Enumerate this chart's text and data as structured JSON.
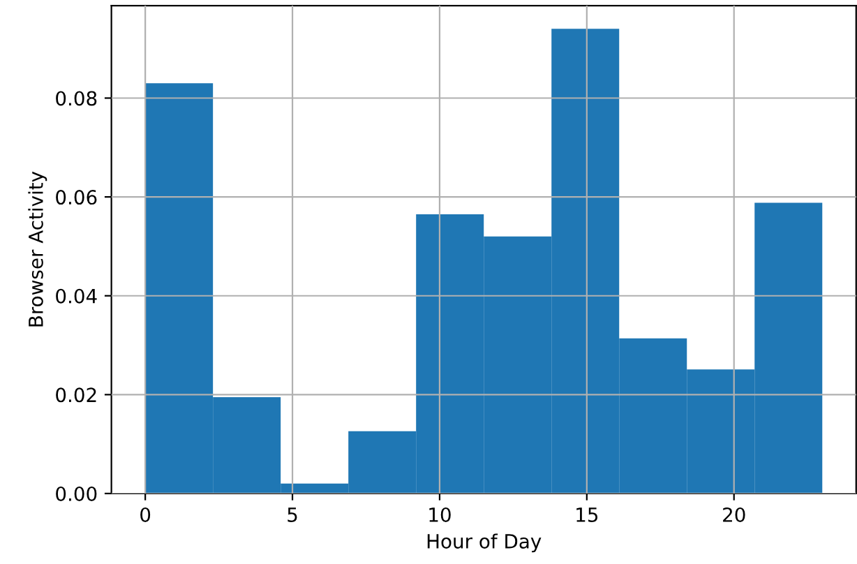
{
  "chart_data": {
    "type": "histogram",
    "xlabel": "Hour of Day",
    "ylabel": "Browser Activity",
    "bins": [
      0,
      2.3,
      4.6,
      6.9,
      9.2,
      11.5,
      13.8,
      16.1,
      18.4,
      20.7,
      23
    ],
    "values": [
      0.083,
      0.0195,
      0.002,
      0.0126,
      0.0565,
      0.052,
      0.094,
      0.0314,
      0.0251,
      0.0588
    ],
    "color": "#1f77b4",
    "xlim": [
      -1.15,
      24.15
    ],
    "xticks": [
      0,
      5,
      10,
      15,
      20
    ],
    "ylim": [
      0,
      0.0987
    ],
    "yticks": [
      {
        "value": 0,
        "label": "0.00"
      },
      {
        "value": 0.02,
        "label": "0.02"
      },
      {
        "value": 0.04,
        "label": "0.04"
      },
      {
        "value": 0.06,
        "label": "0.06"
      },
      {
        "value": 0.08,
        "label": "0.08"
      }
    ],
    "grid": true
  }
}
